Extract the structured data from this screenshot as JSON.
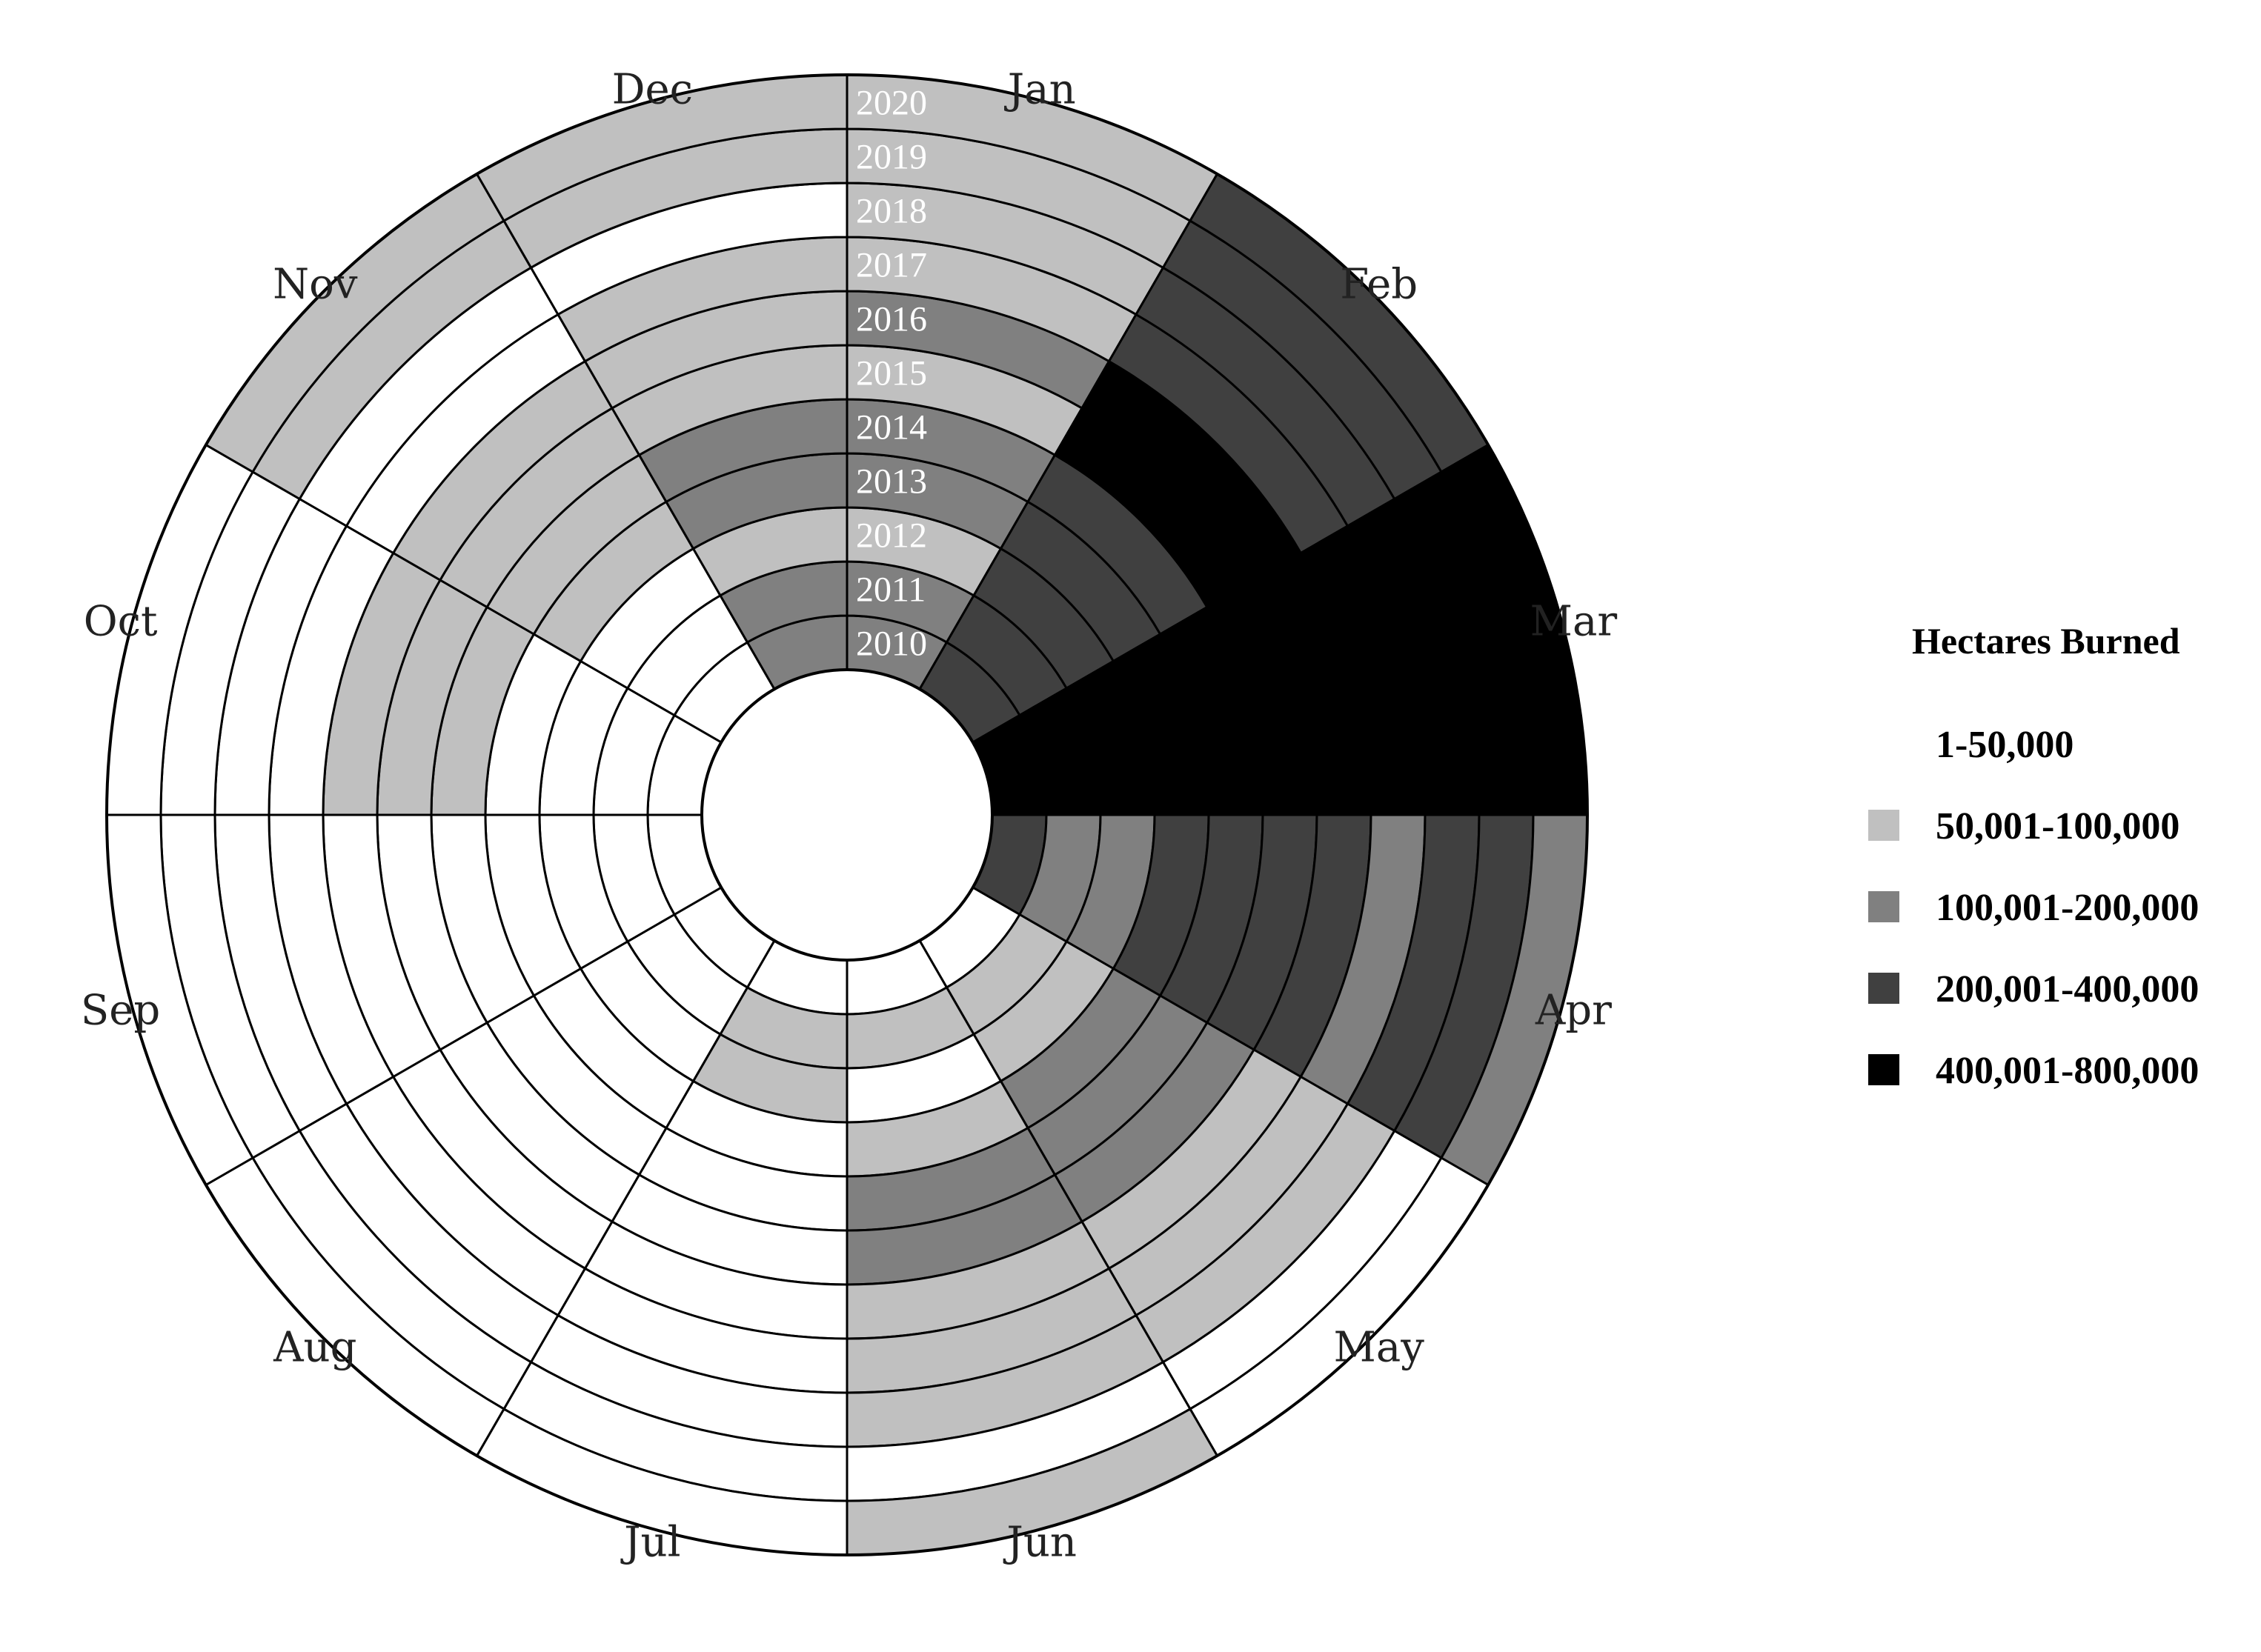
{
  "chart_data": {
    "type": "radial-heatmap",
    "title": "",
    "months": [
      "Jan",
      "Feb",
      "Mar",
      "Apr",
      "May",
      "Jun",
      "Jul",
      "Aug",
      "Sep",
      "Oct",
      "Nov",
      "Dec"
    ],
    "years": [
      "2010",
      "2011",
      "2012",
      "2013",
      "2014",
      "2015",
      "2016",
      "2017",
      "2018",
      "2019",
      "2020"
    ],
    "legend": {
      "title": "Hectares Burned",
      "placement": "right",
      "classes": [
        {
          "label": "1-50,000",
          "color": "#ffffff"
        },
        {
          "label": "50,001-100,000",
          "color": "#c0c0c0"
        },
        {
          "label": "100,001-200,000",
          "color": "#808080"
        },
        {
          "label": "200,001-400,000",
          "color": "#404040"
        },
        {
          "label": "400,001-800,000",
          "color": "#000000"
        }
      ]
    },
    "class_matrix_note_years_inner_to_outer": "2010..2020",
    "values": {
      "Jan": [
        2,
        2,
        1,
        2,
        2,
        1,
        2,
        1,
        1,
        1,
        1
      ],
      "Feb": [
        3,
        3,
        3,
        3,
        3,
        4,
        4,
        3,
        3,
        3,
        3
      ],
      "Mar": [
        4,
        4,
        4,
        4,
        4,
        4,
        4,
        4,
        4,
        4,
        4
      ],
      "Apr": [
        3,
        2,
        2,
        3,
        3,
        3,
        3,
        2,
        3,
        3,
        2
      ],
      "May": [
        0,
        1,
        1,
        2,
        2,
        2,
        1,
        1,
        1,
        0,
        0
      ],
      "Jun": [
        0,
        1,
        0,
        1,
        2,
        2,
        1,
        1,
        1,
        0,
        1
      ],
      "Jul": [
        0,
        1,
        1,
        0,
        0,
        0,
        0,
        0,
        0,
        0,
        0
      ],
      "Aug": [
        0,
        0,
        0,
        0,
        0,
        0,
        0,
        0,
        0,
        0,
        0
      ],
      "Sep": [
        0,
        0,
        0,
        0,
        0,
        0,
        0,
        0,
        0,
        0,
        0
      ],
      "Oct": [
        0,
        0,
        0,
        0,
        1,
        1,
        1,
        0,
        0,
        0,
        0
      ],
      "Nov": [
        0,
        0,
        0,
        1,
        1,
        1,
        1,
        0,
        0,
        1,
        1
      ],
      "Dec": [
        2,
        2,
        1,
        2,
        2,
        1,
        1,
        1,
        0,
        1,
        1
      ]
    }
  }
}
